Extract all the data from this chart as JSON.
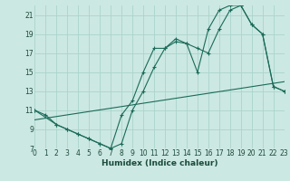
{
  "xlabel": "Humidex (Indice chaleur)",
  "bg_color": "#cce8e2",
  "grid_color": "#aad4cc",
  "line_color": "#1a6b5a",
  "xlim": [
    0,
    23
  ],
  "ylim": [
    7,
    22
  ],
  "yticks": [
    7,
    9,
    11,
    13,
    15,
    17,
    19,
    21
  ],
  "xticks": [
    0,
    1,
    2,
    3,
    4,
    5,
    6,
    7,
    8,
    9,
    10,
    11,
    12,
    13,
    14,
    15,
    16,
    17,
    18,
    19,
    20,
    21,
    22,
    23
  ],
  "curve1_x": [
    0,
    1,
    2,
    3,
    4,
    5,
    6,
    7,
    8,
    9,
    10,
    11,
    12,
    13,
    14,
    15,
    16,
    17,
    18,
    19,
    20,
    21,
    22,
    23
  ],
  "curve1_y": [
    11,
    10.5,
    9.5,
    9.0,
    8.5,
    8.0,
    7.5,
    7.0,
    7.5,
    11.0,
    13.0,
    15.5,
    17.5,
    18.2,
    18.0,
    17.5,
    17.0,
    19.5,
    21.5,
    22.0,
    20.0,
    19.0,
    13.5,
    13.0
  ],
  "curve2_x": [
    0,
    2,
    3,
    4,
    5,
    6,
    7,
    8,
    9,
    10,
    11,
    12,
    13,
    14,
    15,
    16,
    17,
    18,
    19,
    20,
    21,
    22,
    23
  ],
  "curve2_y": [
    11,
    9.5,
    9.0,
    8.5,
    8.0,
    7.5,
    7.0,
    10.5,
    12.0,
    15.0,
    17.5,
    17.5,
    18.5,
    18.0,
    15.0,
    19.5,
    21.5,
    22.0,
    22.0,
    20.0,
    19.0,
    13.5,
    13.0
  ],
  "curve3_x": [
    0,
    23
  ],
  "curve3_y": [
    10.0,
    14.0
  ]
}
